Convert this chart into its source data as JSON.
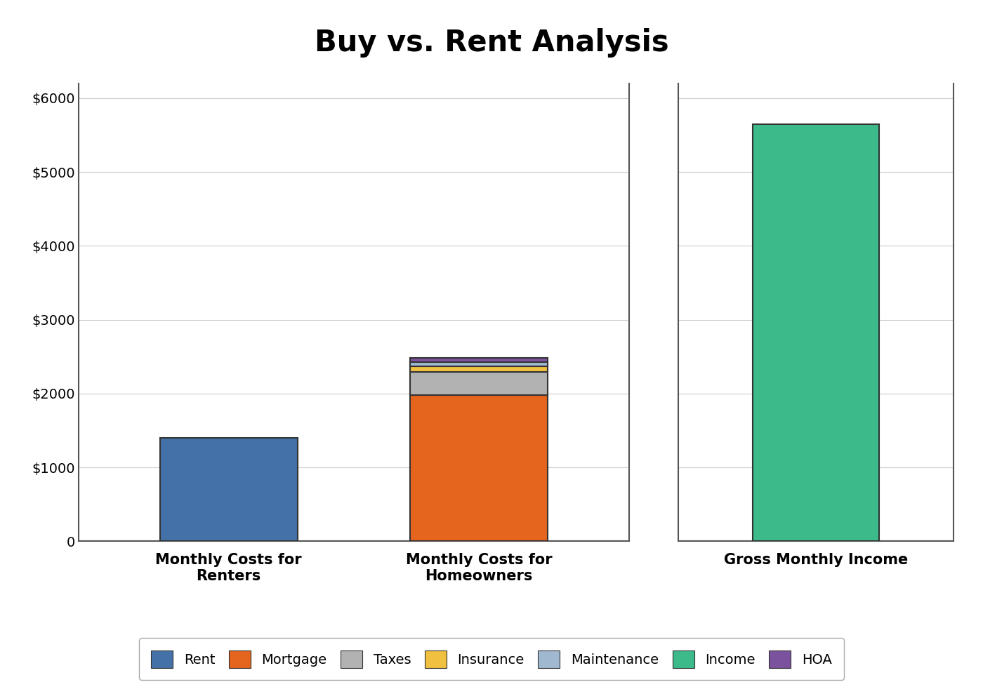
{
  "title": "Buy vs. Rent Analysis",
  "title_fontsize": 30,
  "title_fontweight": "bold",
  "background_color": "#ffffff",
  "bar_groups": {
    "renters": {
      "label": "Monthly Costs for\nRenters",
      "x": 0,
      "segments": [
        {
          "name": "Rent",
          "value": 1400,
          "color": "#4472a8"
        }
      ]
    },
    "homeowners": {
      "label": "Monthly Costs for\nHomeowners",
      "x": 1,
      "segments": [
        {
          "name": "Mortgage",
          "value": 1980,
          "color": "#e5641e"
        },
        {
          "name": "Taxes",
          "value": 310,
          "color": "#b2b2b2"
        },
        {
          "name": "Insurance",
          "value": 80,
          "color": "#f0c040"
        },
        {
          "name": "Maintenance",
          "value": 55,
          "color": "#a0b8d0"
        },
        {
          "name": "HOA",
          "value": 60,
          "color": "#7b529e"
        }
      ]
    },
    "income": {
      "label": "Gross Monthly Income",
      "x": 0,
      "segments": [
        {
          "name": "Income",
          "value": 5650,
          "color": "#3dba8a"
        }
      ]
    }
  },
  "ylim": [
    0,
    6200
  ],
  "yticks": [
    0,
    1000,
    2000,
    3000,
    4000,
    5000,
    6000
  ],
  "ytick_labels": [
    "0",
    "$1000",
    "$2000",
    "$3000",
    "$4000",
    "$5000",
    "$6000"
  ],
  "tick_fontsize": 14,
  "legend_fontsize": 14,
  "grid_color": "#cccccc",
  "bar_width": 0.55,
  "bar_edgecolor": "#333333",
  "bar_edgewidth": 1.5,
  "spine_color": "#555555",
  "spine_linewidth": 1.5,
  "figsize": [
    14.0,
    9.89
  ],
  "dpi": 100,
  "legend_items": [
    {
      "name": "Rent",
      "color": "#4472a8"
    },
    {
      "name": "Mortgage",
      "color": "#e5641e"
    },
    {
      "name": "Taxes",
      "color": "#b2b2b2"
    },
    {
      "name": "Insurance",
      "color": "#f0c040"
    },
    {
      "name": "Maintenance",
      "color": "#a0b8d0"
    },
    {
      "name": "Income",
      "color": "#3dba8a"
    },
    {
      "name": "HOA",
      "color": "#7b529e"
    }
  ]
}
